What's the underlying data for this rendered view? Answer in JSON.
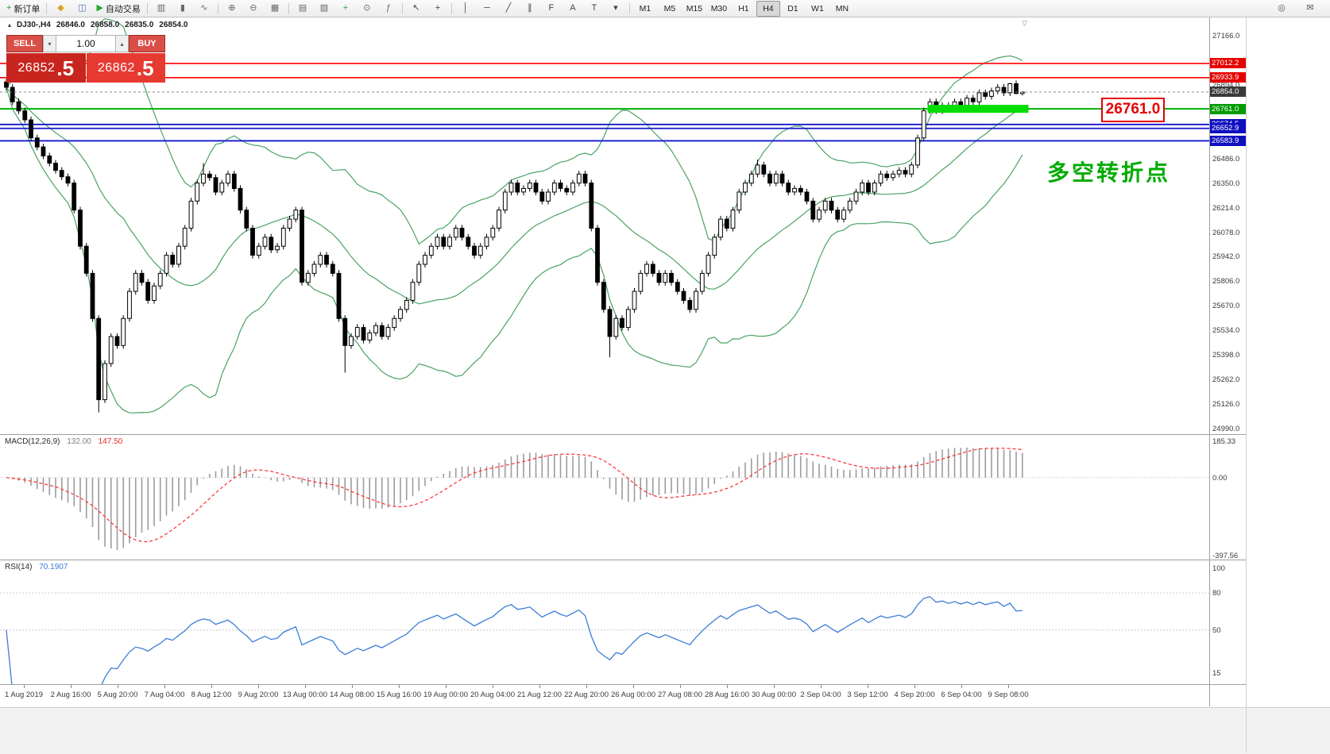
{
  "toolbar": {
    "left_items": [
      {
        "name": "new-order",
        "glyph": "+",
        "label": "新订单",
        "color": "#1fa23d"
      },
      {
        "type": "sep"
      },
      {
        "name": "profiles",
        "glyph": "◆",
        "color": "#d9a32b"
      },
      {
        "name": "market-watch",
        "glyph": "◫",
        "color": "#4a6fd0"
      },
      {
        "name": "auto-trading",
        "glyph": "▶",
        "label": "自动交易",
        "color": "#23a43b"
      },
      {
        "type": "sep"
      },
      {
        "name": "bar-chart",
        "glyph": "▥",
        "color": "#666666"
      },
      {
        "name": "candlestick-chart",
        "glyph": "▮",
        "color": "#666666"
      },
      {
        "name": "line-chart",
        "glyph": "∿",
        "color": "#666666"
      },
      {
        "type": "sep"
      },
      {
        "name": "zoom-in",
        "glyph": "⊕",
        "color": "#666666"
      },
      {
        "name": "zoom-out",
        "glyph": "⊖",
        "color": "#666666"
      },
      {
        "name": "tile-windows",
        "glyph": "▦",
        "color": "#666666"
      },
      {
        "type": "sep"
      },
      {
        "name": "cascade-windows",
        "glyph": "▤",
        "color": "#666666"
      },
      {
        "name": "arrange-windows",
        "glyph": "▧",
        "color": "#666666"
      },
      {
        "name": "new-chart",
        "glyph": "+",
        "color": "#1fa23d"
      },
      {
        "name": "periods",
        "glyph": "⊙",
        "color": "#666666"
      },
      {
        "name": "indicators",
        "glyph": "ƒ",
        "color": "#666666"
      },
      {
        "type": "sep"
      },
      {
        "name": "cursor",
        "glyph": "↖",
        "color": "#444444"
      },
      {
        "name": "crosshair",
        "glyph": "+",
        "color": "#444444"
      },
      {
        "type": "sep"
      },
      {
        "name": "vertical-line",
        "glyph": "│",
        "color": "#444444"
      },
      {
        "name": "horizontal-line",
        "glyph": "─",
        "color": "#444444"
      },
      {
        "name": "trendline",
        "glyph": "╱",
        "color": "#444444"
      },
      {
        "name": "equidistant-channel",
        "glyph": "∥",
        "color": "#444444"
      },
      {
        "name": "fibonacci",
        "glyph": "F",
        "color": "#444444"
      },
      {
        "name": "text",
        "glyph": "A",
        "color": "#444444"
      },
      {
        "name": "text-label",
        "glyph": "T",
        "color": "#444444"
      },
      {
        "name": "shapes-dropdown",
        "glyph": "▾",
        "color": "#444444"
      },
      {
        "type": "sep"
      }
    ],
    "timeframes": [
      "M1",
      "M5",
      "M15",
      "M30",
      "H1",
      "H4",
      "D1",
      "W1",
      "MN"
    ],
    "active_timeframe": "H4",
    "right_items": [
      {
        "name": "search",
        "glyph": "◎",
        "color": "#555555"
      },
      {
        "name": "community-chat",
        "glyph": "✉",
        "color": "#555555"
      }
    ]
  },
  "chart": {
    "collapse_glyph": "▴",
    "shift_glyph": "▽",
    "symbol": "DJ30-,H4",
    "open": "26846.0",
    "high": "26858.0",
    "low": "26835.0",
    "close": "26854.0"
  },
  "trade_panel": {
    "sell_label": "SELL",
    "buy_label": "BUY",
    "volume": "1.00",
    "spin_down_glyph": "▾",
    "spin_up_glyph": "▴",
    "sell_price_int": "26852",
    "sell_price_dec": ".5",
    "buy_price_int": "26862",
    "buy_price_dec": ".5"
  },
  "annotations": {
    "callout_text": "26761.0",
    "note_text": "多空转折点"
  },
  "price_axis": {
    "plain_labels": [
      27166.0,
      26894.0,
      26486.0,
      26350.0,
      26214.0,
      26078.0,
      25942.0,
      25806.0,
      25670.0,
      25534.0,
      25398.0,
      25262.0,
      25126.0,
      24990.0
    ],
    "level_labels": [
      {
        "price": 27012.2,
        "text": "27012.2",
        "bg": "#e60000"
      },
      {
        "price": 26933.9,
        "text": "26933.9",
        "bg": "#e60000"
      },
      {
        "price": 26854.0,
        "text": "26854.0",
        "bg": "#3a3a3a"
      },
      {
        "price": 26761.0,
        "text": "26761.0",
        "bg": "#009b00"
      },
      {
        "price": 26674.5,
        "text": "26674.5",
        "bg": "#0f0fc0"
      },
      {
        "price": 26652.9,
        "text": "26652.9",
        "bg": "#0f0fc0"
      },
      {
        "price": 26583.9,
        "text": "26583.9",
        "bg": "#0f0fc0"
      }
    ]
  },
  "macd": {
    "title": "MACD(12,26,9)",
    "main_value": "132.00",
    "signal_value": "147.50",
    "scale_top": "185.33",
    "scale_zero": "0.00",
    "scale_bottom": "-397.56"
  },
  "rsi": {
    "title": "RSI(14)",
    "value": "70.1907",
    "scale": [
      "100",
      "80",
      "50",
      "15"
    ]
  },
  "time_axis": [
    "1 Aug 2019",
    "2 Aug 16:00",
    "5 Aug 20:00",
    "7 Aug 04:00",
    "8 Aug 12:00",
    "9 Aug 20:00",
    "13 Aug 00:00",
    "14 Aug 08:00",
    "15 Aug 16:00",
    "19 Aug 00:00",
    "20 Aug 04:00",
    "21 Aug 12:00",
    "22 Aug 20:00",
    "26 Aug 00:00",
    "27 Aug 08:00",
    "28 Aug 16:00",
    "30 Aug 00:00",
    "2 Sep 04:00",
    "3 Sep 12:00",
    "4 Sep 20:00",
    "6 Sep 04:00",
    "9 Sep 08:00"
  ],
  "chart_data": {
    "type": "candlestick",
    "symbol": "DJ30-",
    "timeframe": "H4",
    "ylim": [
      24990,
      27166
    ],
    "ohlc_last": {
      "open": 26846.0,
      "high": 26858.0,
      "low": 26835.0,
      "close": 26854.0
    },
    "indicators": {
      "bollinger_period": 20,
      "bollinger_deviation": 2,
      "macd_params": "12,26,9",
      "rsi_period": 14
    },
    "levels": {
      "red": [
        27012.2,
        26933.9
      ],
      "green": 26761.0,
      "blue": [
        26674.5,
        26652.9,
        26583.9
      ],
      "current": 26854.0,
      "highlight": {
        "price": 26761.0,
        "bar_from": 150,
        "bar_to": 166,
        "color": "#00dd00"
      }
    },
    "candles": [
      [
        26910,
        26928,
        26862,
        26880
      ],
      [
        26880,
        26898,
        26782,
        26800
      ],
      [
        26800,
        26818,
        26732,
        26750
      ],
      [
        26750,
        26768,
        26682,
        26700
      ],
      [
        26700,
        26718,
        26582,
        26600
      ],
      [
        26600,
        26618,
        26532,
        26550
      ],
      [
        26550,
        26568,
        26482,
        26500
      ],
      [
        26500,
        26518,
        26442,
        26460
      ],
      [
        26460,
        26478,
        26402,
        26420
      ],
      [
        26420,
        26438,
        26367,
        26385
      ],
      [
        26385,
        26403,
        26332,
        26350
      ],
      [
        26350,
        26368,
        26182,
        26200
      ],
      [
        26200,
        26218,
        25982,
        26000
      ],
      [
        26000,
        26018,
        25832,
        25850
      ],
      [
        25850,
        25868,
        25582,
        25600
      ],
      [
        25600,
        25618,
        25080,
        25150
      ],
      [
        25150,
        25368,
        25132,
        25350
      ],
      [
        25350,
        25518,
        25332,
        25500
      ],
      [
        25500,
        25518,
        25432,
        25450
      ],
      [
        25450,
        25618,
        25432,
        25600
      ],
      [
        25600,
        25768,
        25582,
        25750
      ],
      [
        25750,
        25868,
        25732,
        25850
      ],
      [
        25850,
        25868,
        25782,
        25800
      ],
      [
        25800,
        25818,
        25682,
        25700
      ],
      [
        25700,
        25798,
        25682,
        25780
      ],
      [
        25780,
        25868,
        25762,
        25850
      ],
      [
        25850,
        25968,
        25832,
        25950
      ],
      [
        25950,
        25968,
        25882,
        25900
      ],
      [
        25900,
        26018,
        25882,
        26000
      ],
      [
        26000,
        26118,
        25982,
        26100
      ],
      [
        26100,
        26268,
        26082,
        26250
      ],
      [
        26250,
        26368,
        26232,
        26350
      ],
      [
        26350,
        26460,
        26332,
        26400
      ],
      [
        26400,
        26418,
        26362,
        26380
      ],
      [
        26380,
        26398,
        26282,
        26300
      ],
      [
        26300,
        26368,
        26282,
        26350
      ],
      [
        26350,
        26418,
        26332,
        26400
      ],
      [
        26400,
        26418,
        26302,
        26320
      ],
      [
        26320,
        26338,
        26182,
        26200
      ],
      [
        26200,
        26218,
        26082,
        26100
      ],
      [
        26100,
        26118,
        25932,
        25950
      ],
      [
        25950,
        26018,
        25932,
        26000
      ],
      [
        26000,
        26068,
        25982,
        26050
      ],
      [
        26050,
        26068,
        25962,
        25980
      ],
      [
        25980,
        26018,
        25962,
        26000
      ],
      [
        26000,
        26118,
        25982,
        26100
      ],
      [
        26100,
        26168,
        26082,
        26150
      ],
      [
        26150,
        26218,
        26132,
        26200
      ],
      [
        26200,
        26218,
        25782,
        25800
      ],
      [
        25800,
        25868,
        25782,
        25850
      ],
      [
        25850,
        25918,
        25832,
        25900
      ],
      [
        25900,
        25968,
        25882,
        25950
      ],
      [
        25950,
        25968,
        25882,
        25900
      ],
      [
        25900,
        25918,
        25832,
        25850
      ],
      [
        25850,
        25868,
        25582,
        25600
      ],
      [
        25600,
        25618,
        25300,
        25450
      ],
      [
        25450,
        25518,
        25432,
        25500
      ],
      [
        25500,
        25568,
        25482,
        25550
      ],
      [
        25550,
        25568,
        25462,
        25480
      ],
      [
        25480,
        25538,
        25462,
        25520
      ],
      [
        25520,
        25578,
        25502,
        25560
      ],
      [
        25560,
        25578,
        25482,
        25500
      ],
      [
        25500,
        25568,
        25482,
        25550
      ],
      [
        25550,
        25618,
        25532,
        25600
      ],
      [
        25600,
        25668,
        25582,
        25650
      ],
      [
        25650,
        25718,
        25632,
        25700
      ],
      [
        25700,
        25818,
        25682,
        25800
      ],
      [
        25800,
        25918,
        25782,
        25900
      ],
      [
        25900,
        25968,
        25882,
        25950
      ],
      [
        25950,
        26018,
        25932,
        26000
      ],
      [
        26000,
        26068,
        25982,
        26050
      ],
      [
        26050,
        26068,
        25982,
        26000
      ],
      [
        26000,
        26068,
        25982,
        26050
      ],
      [
        26050,
        26118,
        26032,
        26100
      ],
      [
        26100,
        26118,
        26032,
        26050
      ],
      [
        26050,
        26068,
        25982,
        26000
      ],
      [
        26000,
        26018,
        25932,
        25950
      ],
      [
        25950,
        26018,
        25932,
        26000
      ],
      [
        26000,
        26068,
        25982,
        26050
      ],
      [
        26050,
        26118,
        26032,
        26100
      ],
      [
        26100,
        26218,
        26082,
        26200
      ],
      [
        26200,
        26318,
        26182,
        26300
      ],
      [
        26300,
        26368,
        26282,
        26350
      ],
      [
        26350,
        26368,
        26282,
        26300
      ],
      [
        26300,
        26338,
        26282,
        26320
      ],
      [
        26320,
        26368,
        26302,
        26350
      ],
      [
        26350,
        26368,
        26282,
        26300
      ],
      [
        26300,
        26318,
        26232,
        26250
      ],
      [
        26250,
        26318,
        26232,
        26300
      ],
      [
        26300,
        26368,
        26282,
        26350
      ],
      [
        26350,
        26368,
        26302,
        26320
      ],
      [
        26320,
        26338,
        26282,
        26300
      ],
      [
        26300,
        26368,
        26282,
        26350
      ],
      [
        26350,
        26418,
        26332,
        26400
      ],
      [
        26400,
        26418,
        26332,
        26350
      ],
      [
        26350,
        26368,
        26082,
        26100
      ],
      [
        26100,
        26118,
        25782,
        25800
      ],
      [
        25800,
        25818,
        25632,
        25650
      ],
      [
        25650,
        25668,
        25385,
        25500
      ],
      [
        25500,
        25618,
        25482,
        25600
      ],
      [
        25600,
        25618,
        25532,
        25550
      ],
      [
        25550,
        25668,
        25532,
        25650
      ],
      [
        25650,
        25768,
        25632,
        25750
      ],
      [
        25750,
        25868,
        25732,
        25850
      ],
      [
        25850,
        25918,
        25832,
        25900
      ],
      [
        25900,
        25918,
        25832,
        25850
      ],
      [
        25850,
        25868,
        25782,
        25800
      ],
      [
        25800,
        25868,
        25782,
        25850
      ],
      [
        25850,
        25868,
        25782,
        25800
      ],
      [
        25800,
        25818,
        25732,
        25750
      ],
      [
        25750,
        25768,
        25682,
        25700
      ],
      [
        25700,
        25718,
        25632,
        25650
      ],
      [
        25650,
        25768,
        25632,
        25750
      ],
      [
        25750,
        25868,
        25732,
        25850
      ],
      [
        25850,
        25968,
        25832,
        25950
      ],
      [
        25950,
        26068,
        25932,
        26050
      ],
      [
        26050,
        26168,
        26032,
        26150
      ],
      [
        26150,
        26168,
        26082,
        26100
      ],
      [
        26100,
        26218,
        26082,
        26200
      ],
      [
        26200,
        26318,
        26182,
        26300
      ],
      [
        26300,
        26368,
        26282,
        26350
      ],
      [
        26350,
        26418,
        26332,
        26400
      ],
      [
        26400,
        26480,
        26382,
        26450
      ],
      [
        26450,
        26468,
        26382,
        26400
      ],
      [
        26400,
        26418,
        26332,
        26350
      ],
      [
        26350,
        26418,
        26332,
        26400
      ],
      [
        26400,
        26418,
        26332,
        26350
      ],
      [
        26350,
        26368,
        26282,
        26300
      ],
      [
        26300,
        26338,
        26282,
        26320
      ],
      [
        26320,
        26338,
        26282,
        26300
      ],
      [
        26300,
        26318,
        26232,
        26250
      ],
      [
        26250,
        26268,
        26132,
        26150
      ],
      [
        26150,
        26218,
        26132,
        26200
      ],
      [
        26200,
        26268,
        26182,
        26250
      ],
      [
        26250,
        26268,
        26182,
        26200
      ],
      [
        26200,
        26218,
        26132,
        26150
      ],
      [
        26150,
        26218,
        26132,
        26200
      ],
      [
        26200,
        26268,
        26182,
        26250
      ],
      [
        26250,
        26318,
        26232,
        26300
      ],
      [
        26300,
        26368,
        26282,
        26350
      ],
      [
        26350,
        26368,
        26282,
        26300
      ],
      [
        26300,
        26368,
        26282,
        26350
      ],
      [
        26350,
        26418,
        26332,
        26400
      ],
      [
        26400,
        26418,
        26362,
        26380
      ],
      [
        26380,
        26418,
        26362,
        26400
      ],
      [
        26400,
        26438,
        26382,
        26420
      ],
      [
        26420,
        26438,
        26382,
        26400
      ],
      [
        26400,
        26468,
        26382,
        26450
      ],
      [
        26450,
        26618,
        26432,
        26600
      ],
      [
        26600,
        26768,
        26582,
        26750
      ],
      [
        26750,
        26818,
        26732,
        26800
      ],
      [
        26800,
        26818,
        26732,
        26750
      ],
      [
        26750,
        26798,
        26732,
        26780
      ],
      [
        26780,
        26798,
        26742,
        26760
      ],
      [
        26760,
        26818,
        26742,
        26800
      ],
      [
        26800,
        26818,
        26762,
        26780
      ],
      [
        26780,
        26838,
        26762,
        26820
      ],
      [
        26820,
        26838,
        26782,
        26800
      ],
      [
        26800,
        26868,
        26782,
        26850
      ],
      [
        26850,
        26868,
        26812,
        26830
      ],
      [
        26830,
        26878,
        26812,
        26860
      ],
      [
        26860,
        26898,
        26842,
        26880
      ],
      [
        26880,
        26898,
        26832,
        26850
      ],
      [
        26850,
        26905,
        26832,
        26900
      ],
      [
        26900,
        26918,
        26842,
        26846
      ],
      [
        26846,
        26858,
        26835,
        26854
      ]
    ]
  }
}
